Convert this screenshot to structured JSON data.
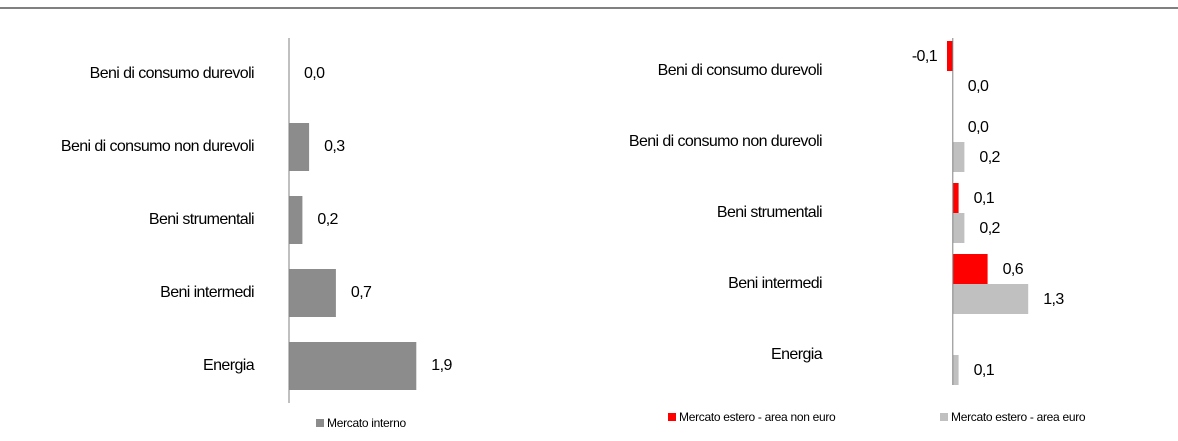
{
  "chart_data": [
    {
      "type": "bar",
      "orientation": "horizontal",
      "categories": [
        "Beni di consumo durevoli",
        "Beni di consumo non durevoli",
        "Beni strumentali",
        "Beni intermedi",
        "Energia"
      ],
      "series": [
        {
          "name": "Mercato interno",
          "color": "#8c8c8c",
          "values": [
            0.0,
            0.3,
            0.2,
            0.7,
            1.9
          ],
          "value_labels": [
            "0,0",
            "0,3",
            "0,2",
            "0,7",
            "1,9"
          ]
        }
      ],
      "xlim": [
        0,
        2.0
      ]
    },
    {
      "type": "bar",
      "orientation": "horizontal",
      "categories": [
        "Beni di consumo durevoli",
        "Beni di consumo non durevoli",
        "Beni strumentali",
        "Beni intermedi",
        "Energia"
      ],
      "series": [
        {
          "name": "Mercato estero - area non euro",
          "color": "#ff0000",
          "values": [
            -0.1,
            0.0,
            0.1,
            0.6,
            null
          ],
          "value_labels": [
            "-0,1",
            "0,0",
            "0,1",
            "0,6",
            null
          ]
        },
        {
          "name": "Mercato estero - area euro",
          "color": "#c0c0c0",
          "values": [
            0.0,
            0.2,
            0.2,
            1.3,
            0.1
          ],
          "value_labels": [
            "0,0",
            "0,2",
            "0,2",
            "1,3",
            "0,1"
          ]
        }
      ],
      "xlim": [
        -0.1,
        1.4
      ]
    }
  ]
}
